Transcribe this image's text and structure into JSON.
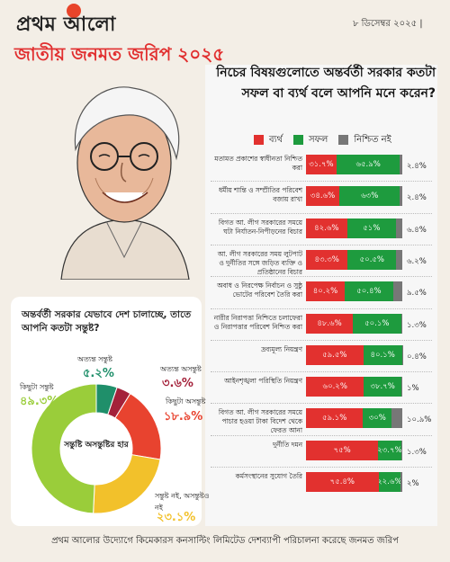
{
  "masthead": {
    "logo": "প্রথম আলো",
    "date": "৮ ডিসেম্বর ২০২৫ |",
    "subtitle": "জাতীয় জনমত জরিপ ২০২৫"
  },
  "footer": "প্রথম আলোর উদ্যোগে কিমেকারস কনসাল্টিং লিমিটেড দেশব্যাপী পরিচালনা করেছে জনমত জরিপ",
  "colors": {
    "fail": "#e2312f",
    "success": "#1e9b3e",
    "unsure": "#777777",
    "accent": "#e12f2f"
  },
  "chart_data": [
    {
      "type": "bar",
      "stacked": true,
      "orientation": "horizontal",
      "title": "নিচের বিষয়গুলোতে অন্তর্বর্তী সরকার কতটা সফল বা ব্যর্থ বলে আপনি মনে করেন?",
      "legend": [
        "ব্যর্থ",
        "সফল",
        "নিশ্চিত নই"
      ],
      "legend_position": "top",
      "categories": [
        "মতামত প্রকাশের স্বাধীনতা নিশ্চিত করা",
        "ধর্মীয় শান্তি ও সম্প্রীতির পরিবেশ বজায় রাখা",
        "বিগত আ. লীগ সরকারের সময়ে ঘটা নির্যাতন-নিপীড়নের বিচার",
        "আ. লীগ সরকারের সময় লুটপাট ও দুর্নীতির সঙ্গে জড়িত ব্যক্তি ও প্রতিষ্ঠানের বিচার",
        "অবাধ ও নিরপেক্ষ নির্বাচন ও সুষ্ঠু ভোটের পরিবেশ তৈরি করা",
        "নারীর নিরাপত্তা নিশ্চিতে চলাফেরা ও নিরাপত্তার পরিবেশ নিশ্চিত করা",
        "দ্রব্যমূল্য নিয়ন্ত্রণ",
        "আইনশৃঙ্খলা পরিস্থিতি নিয়ন্ত্রণ",
        "বিগত আ. লীগ সরকারের সময়ে পাচার হওয়া টাকা বিদেশ থেকে ফেরত আনা",
        "দুর্নীতি দমন",
        "কর্মসংস্থানের সুযোগ তৈরি"
      ],
      "series": [
        {
          "name": "ব্যর্থ",
          "values": [
            31.7,
            34.6,
            42.6,
            43.3,
            40.2,
            48.6,
            59.5,
            60.2,
            59.1,
            75,
            75.4
          ],
          "labels": [
            "৩১.৭%",
            "৩৪.৬%",
            "৪২.৬%",
            "৪৩.৩%",
            "৪০.২%",
            "৪৮.৬%",
            "৫৯.৫%",
            "৬০.২%",
            "৫৯.১%",
            "৭৫%",
            "৭৫.৪%"
          ]
        },
        {
          "name": "সফল",
          "values": [
            65.9,
            63,
            51,
            50.5,
            50.4,
            50.1,
            40.1,
            38.7,
            30,
            23.7,
            22.6
          ],
          "labels": [
            "৬৫.৯%",
            "৬৩%",
            "৫১%",
            "৫০.৫%",
            "৫০.৪%",
            "৫০.১%",
            "৪০.১%",
            "৩৮.৭%",
            "৩০%",
            "২৩.৭%",
            "২২.৬%"
          ]
        },
        {
          "name": "নিশ্চিত নই",
          "values": [
            2.4,
            2.4,
            6.4,
            6.2,
            9.5,
            1.3,
            0.4,
            1,
            10.9,
            1.3,
            2
          ],
          "labels": [
            "২.৪%",
            "২.৪%",
            "৬.৪%",
            "৬.২%",
            "৯.৫%",
            "১.৩%",
            "০.৪%",
            "১%",
            "১০.৯%",
            "১.৩%",
            "২%"
          ]
        }
      ],
      "xlim": [
        0,
        100
      ]
    },
    {
      "type": "pie",
      "donut": true,
      "title": "অন্তর্বর্তী সরকার যেভাবে দেশ চালাচ্ছে, তাতে আপনি কতটা সন্তুষ্ট?",
      "center_label": "সন্তুষ্টি অসন্তুষ্টির হার",
      "slices": [
        {
          "label": "অত্যন্ত সন্তুষ্ট",
          "value": 5.2,
          "value_label": "৫.২%",
          "color": "#1f8f6a"
        },
        {
          "label": "অত্যন্ত অসন্তুষ্ট",
          "value": 3.6,
          "value_label": "৩.৬%",
          "color": "#a4213a"
        },
        {
          "label": "কিছুটা অসন্তুষ্ট",
          "value": 18.9,
          "value_label": "১৮.৯%",
          "color": "#e8432f"
        },
        {
          "label": "সন্তুষ্ট নই, অসন্তুষ্টও নই",
          "value": 23.1,
          "value_label": "২৩.১%",
          "color": "#f2c12b"
        },
        {
          "label": "কিছুটা সন্তুষ্ট",
          "value": 49.3,
          "value_label": "৪৯.৩%",
          "color": "#9acd3a"
        }
      ]
    }
  ]
}
